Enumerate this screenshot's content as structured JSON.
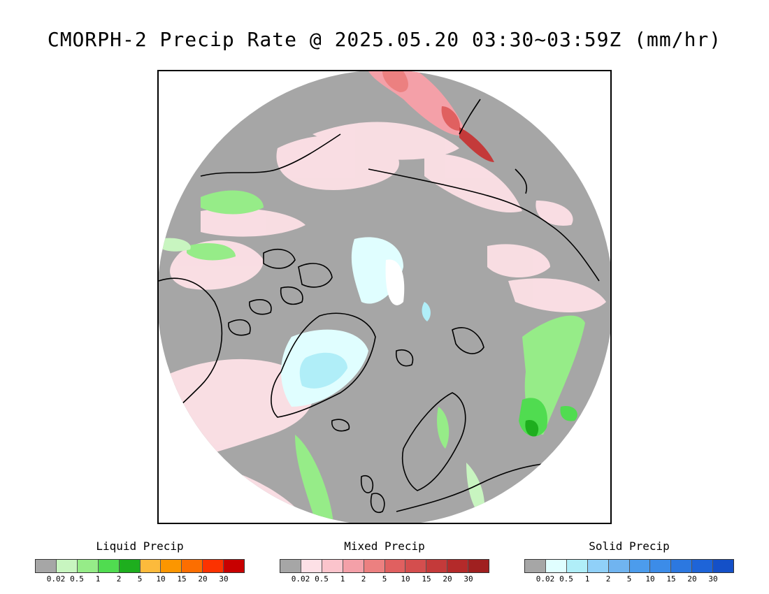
{
  "title": "CMORPH-2 Precip Rate @ 2025.05.20 03:30~03:59Z (mm/hr)",
  "legends": [
    {
      "title": "Liquid Precip",
      "colors": [
        "#a6a6a6",
        "#c8f5c0",
        "#96ec88",
        "#50dc50",
        "#1eae1e",
        "#fcba3c",
        "#fc9600",
        "#fc6e00",
        "#fc3200",
        "#c80000"
      ],
      "labels": [
        "0.02",
        "0.5",
        "1",
        "2",
        "5",
        "10",
        "15",
        "20",
        "30"
      ]
    },
    {
      "title": "Mixed Precip",
      "colors": [
        "#a6a6a6",
        "#fde0e6",
        "#fbc4cc",
        "#f4a0a8",
        "#ec8080",
        "#e06060",
        "#d44e4e",
        "#c43a3a",
        "#b42a2a",
        "#a02020"
      ],
      "labels": [
        "0.02",
        "0.5",
        "1",
        "2",
        "5",
        "10",
        "15",
        "20",
        "30"
      ]
    },
    {
      "title": "Solid Precip",
      "colors": [
        "#a6a6a6",
        "#e0feff",
        "#b0eef8",
        "#90d0f8",
        "#70b4f0",
        "#4c9cec",
        "#3c8ce8",
        "#2c78e0",
        "#1e64d8",
        "#1450c8"
      ],
      "labels": [
        "0.02",
        "0.5",
        "1",
        "2",
        "5",
        "10",
        "15",
        "20",
        "30"
      ]
    }
  ],
  "map": {
    "projection": "north polar stereographic",
    "background_color": "#a6a6a6",
    "coastline_color": "#000000"
  }
}
